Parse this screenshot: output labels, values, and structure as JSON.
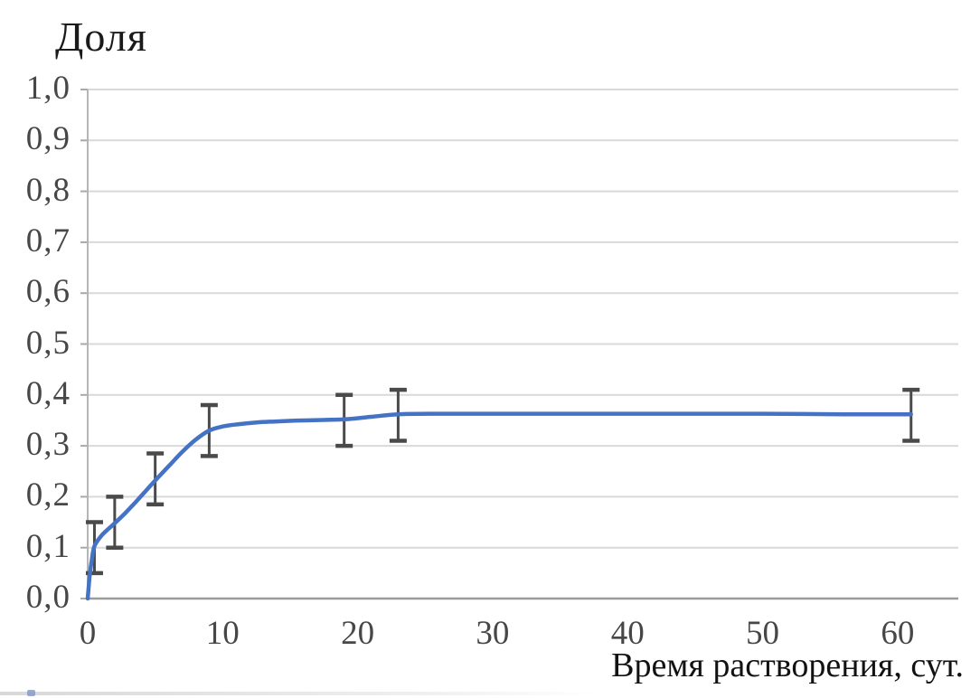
{
  "title": "Доля",
  "x_axis_label": "Время растворения, сут.",
  "colors": {
    "line": "#4472c4",
    "error_bar": "#4a4a4a",
    "gridline": "#d9d9d9",
    "x_axis": "#9b9b9b",
    "y_axis": "#b5b5b5",
    "tick_mark": "#a8a8a8",
    "tick_text": "#474747",
    "title_text": "#1a1a1a"
  },
  "chart_data": {
    "type": "line",
    "title": "Доля",
    "xlabel": "Время растворения, сут.",
    "ylabel": "Доля",
    "xlim": [
      0,
      64.5
    ],
    "ylim": [
      0,
      1.0
    ],
    "xticks": [
      0,
      10,
      20,
      30,
      40,
      50,
      60
    ],
    "xtick_labels": [
      "0",
      "10",
      "20",
      "30",
      "40",
      "50",
      "60"
    ],
    "yticks": [
      0,
      0.1,
      0.2,
      0.3,
      0.4,
      0.5,
      0.6,
      0.7,
      0.8,
      0.9,
      1.0
    ],
    "ytick_labels": [
      "0,0",
      "0,1",
      "0,2",
      "0,3",
      "0,4",
      "0,5",
      "0,6",
      "0,7",
      "0,8",
      "0,9",
      "1,0"
    ],
    "decimal_separator": ",",
    "grid": "horizontal",
    "legend": "none",
    "series": [
      {
        "points": {
          "x": [
            0,
            0.5,
            2,
            5,
            9,
            19,
            23,
            61
          ],
          "y": [
            0,
            0.1,
            0.15,
            0.235,
            0.33,
            0.35,
            0.36,
            0.36
          ]
        },
        "error_bars": [
          {
            "x": 0.5,
            "y": 0.1,
            "y_low": 0.05,
            "y_high": 0.15
          },
          {
            "x": 2,
            "y": 0.15,
            "y_low": 0.1,
            "y_high": 0.2
          },
          {
            "x": 5,
            "y": 0.235,
            "y_low": 0.185,
            "y_high": 0.285
          },
          {
            "x": 9,
            "y": 0.33,
            "y_low": 0.28,
            "y_high": 0.38
          },
          {
            "x": 19,
            "y": 0.35,
            "y_low": 0.3,
            "y_high": 0.4
          },
          {
            "x": 23,
            "y": 0.36,
            "y_low": 0.31,
            "y_high": 0.41
          },
          {
            "x": 61,
            "y": 0.36,
            "y_low": 0.31,
            "y_high": 0.41
          }
        ],
        "smooth_curve": {
          "x": [
            0,
            0.15,
            0.3,
            0.5,
            1,
            1.5,
            2,
            2.75,
            3.5,
            4.25,
            5,
            6,
            7,
            8,
            9,
            10,
            11,
            12.5,
            14,
            16,
            19,
            21,
            23,
            26,
            30,
            36,
            43,
            50,
            56,
            61
          ],
          "y": [
            0,
            0.045,
            0.075,
            0.103,
            0.123,
            0.136,
            0.148,
            0.167,
            0.188,
            0.21,
            0.232,
            0.26,
            0.288,
            0.312,
            0.33,
            0.338,
            0.342,
            0.346,
            0.348,
            0.35,
            0.352,
            0.357,
            0.362,
            0.363,
            0.363,
            0.363,
            0.363,
            0.363,
            0.362,
            0.362
          ]
        }
      }
    ]
  }
}
